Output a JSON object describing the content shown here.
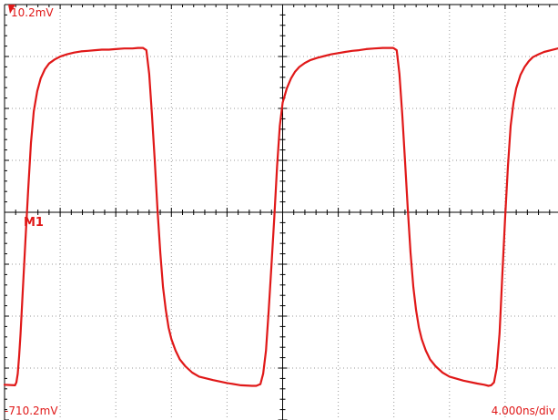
{
  "chart_data": {
    "type": "line",
    "x_unit": "ns",
    "y_unit": "mV",
    "xlim": [
      0,
      40
    ],
    "ylim": [
      -710.2,
      10.2
    ],
    "grid": true,
    "series": [
      {
        "name": "M1",
        "x": [
          0,
          0.75,
          0.85,
          0.95,
          1.05,
          1.15,
          1.3,
          1.5,
          1.7,
          1.9,
          2.1,
          2.35,
          2.6,
          2.9,
          3.2,
          3.6,
          4.0,
          4.5,
          5.0,
          5.5,
          6.0,
          6.5,
          7.0,
          7.5,
          8.0,
          8.6,
          9.2,
          9.6,
          9.95,
          10.2,
          10.4,
          10.6,
          10.8,
          11.0,
          11.2,
          11.4,
          11.6,
          11.8,
          12.0,
          12.3,
          12.6,
          13.0,
          13.5,
          14.0,
          15.0,
          16.0,
          17.0,
          17.8,
          18.1,
          18.4,
          18.6,
          18.8,
          19.0,
          19.2,
          19.4,
          19.6,
          19.8,
          20.0,
          20.3,
          20.6,
          20.9,
          21.2,
          21.6,
          22.0,
          22.5,
          23.0,
          23.5,
          24.0,
          24.5,
          25.0,
          25.5,
          26.0,
          26.6,
          27.2,
          27.6,
          27.95,
          28.2,
          28.4,
          28.6,
          28.8,
          29.0,
          29.2,
          29.4,
          29.6,
          29.8,
          30.0,
          30.3,
          30.6,
          31.0,
          31.5,
          32.0,
          33.0,
          34.0,
          34.5,
          34.8,
          35.0,
          35.2,
          35.4,
          35.6,
          35.8,
          36.0,
          36.2,
          36.4,
          36.6,
          36.8,
          37.1,
          37.4,
          37.7,
          38.0,
          38.4,
          38.8,
          39.3,
          39.8,
          40.0
        ],
        "values": [
          -649,
          -650,
          -645,
          -630,
          -600,
          -560,
          -490,
          -400,
          -310,
          -230,
          -175,
          -140,
          -118,
          -102,
          -92,
          -85,
          -80,
          -76,
          -73,
          -71,
          -70,
          -69,
          -68,
          -68,
          -67,
          -66,
          -66,
          -65,
          -65,
          -69,
          -110,
          -180,
          -260,
          -345,
          -420,
          -480,
          -520,
          -550,
          -570,
          -590,
          -605,
          -617,
          -628,
          -635,
          -641,
          -646,
          -650,
          -651,
          -651,
          -648,
          -630,
          -590,
          -520,
          -440,
          -360,
          -270,
          -200,
          -160,
          -135,
          -118,
          -106,
          -98,
          -91,
          -86,
          -82,
          -79,
          -76,
          -74,
          -72,
          -70,
          -69,
          -67,
          -66,
          -65,
          -65,
          -65,
          -69,
          -110,
          -180,
          -260,
          -345,
          -420,
          -480,
          -520,
          -550,
          -570,
          -590,
          -605,
          -617,
          -628,
          -635,
          -642,
          -647,
          -649,
          -651,
          -650,
          -645,
          -620,
          -560,
          -460,
          -360,
          -270,
          -200,
          -160,
          -135,
          -112,
          -98,
          -88,
          -81,
          -76,
          -72,
          -69,
          -66,
          -65
        ]
      }
    ]
  },
  "labels": {
    "top_left": "10.2mV",
    "bottom_left": "-710.2mV",
    "bottom_right": "4.000ns/div",
    "marker": "M1"
  },
  "colors": {
    "trace": "#e01818",
    "labels": "#e01818",
    "grid": "#9a9a9a",
    "axis": "#000000",
    "background": "#ffffff"
  }
}
